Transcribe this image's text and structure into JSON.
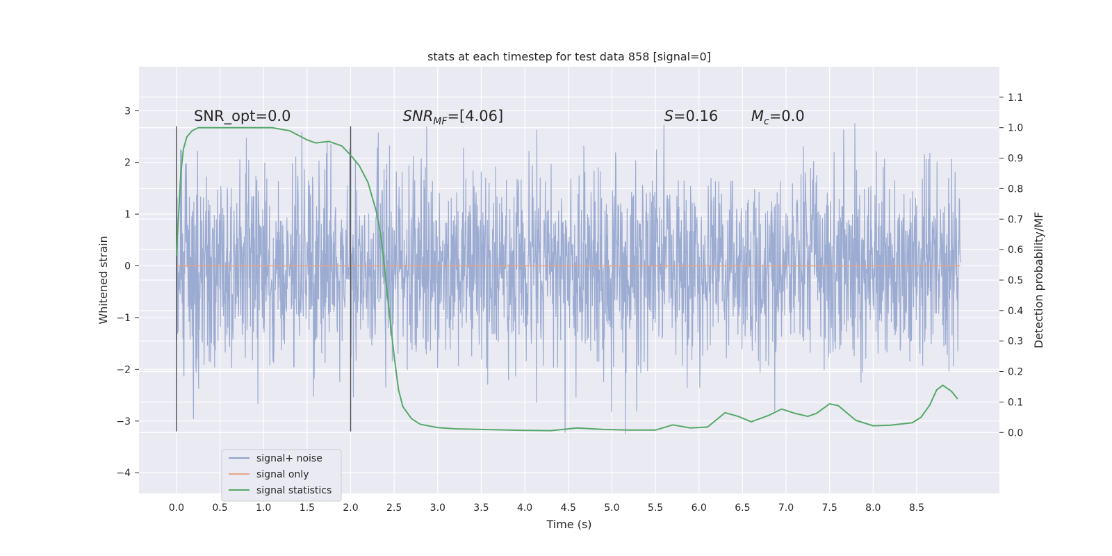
{
  "chart_data": {
    "type": "line",
    "title": "stats at each timestep for test data 858 [signal=0]",
    "xlabel": "Time (s)",
    "ylabel": "Whitened strain",
    "y2label": "Detection probability/MF",
    "xlim": [
      -0.43,
      9.45
    ],
    "ylim": [
      -4.4,
      3.85
    ],
    "y2lim": [
      -0.2,
      1.2
    ],
    "xticks": [
      0.0,
      0.5,
      1.0,
      1.5,
      2.0,
      2.5,
      3.0,
      3.5,
      4.0,
      4.5,
      5.0,
      5.5,
      6.0,
      6.5,
      7.0,
      7.5,
      8.0,
      8.5
    ],
    "xtick_labels": [
      "0.0",
      "0.5",
      "1.0",
      "1.5",
      "2.0",
      "2.5",
      "3.0",
      "3.5",
      "4.0",
      "4.5",
      "5.0",
      "5.5",
      "6.0",
      "6.5",
      "7.0",
      "7.5",
      "8.0",
      "8.5"
    ],
    "yticks": [
      -4,
      -3,
      -2,
      -1,
      0,
      1,
      2,
      3
    ],
    "ytick_labels": [
      "−4",
      "−3",
      "−2",
      "−1",
      "0",
      "1",
      "2",
      "3"
    ],
    "y2ticks": [
      0.0,
      0.1,
      0.2,
      0.3,
      0.4,
      0.5,
      0.6,
      0.7,
      0.8,
      0.9,
      1.0,
      1.1
    ],
    "y2tick_labels": [
      "0.0",
      "0.1",
      "0.2",
      "0.3",
      "0.4",
      "0.5",
      "0.6",
      "0.7",
      "0.8",
      "0.9",
      "1.0",
      "1.1"
    ],
    "grid": true,
    "legend_position": "lower-left",
    "series": [
      {
        "name": "signal+ noise",
        "color": "#8da0cb",
        "axis": "left",
        "style": "noise",
        "x_range": [
          0.0,
          9.0
        ],
        "sigma": 0.95
      },
      {
        "name": "signal only",
        "color": "#e8a587",
        "axis": "left",
        "x": [
          0.0,
          9.0
        ],
        "y": [
          0.0,
          0.0
        ]
      },
      {
        "name": "signal statistics",
        "color": "#55a868",
        "axis": "right",
        "x": [
          0.0,
          0.05,
          0.08,
          0.12,
          0.18,
          0.25,
          0.35,
          0.5,
          0.7,
          0.9,
          1.1,
          1.3,
          1.5,
          1.6,
          1.75,
          1.9,
          2.0,
          2.1,
          2.2,
          2.3,
          2.35,
          2.4,
          2.45,
          2.5,
          2.55,
          2.6,
          2.7,
          2.8,
          3.0,
          3.2,
          3.5,
          4.0,
          4.3,
          4.6,
          4.9,
          5.2,
          5.5,
          5.7,
          5.9,
          6.1,
          6.3,
          6.45,
          6.6,
          6.8,
          6.95,
          7.1,
          7.25,
          7.35,
          7.5,
          7.6,
          7.8,
          8.0,
          8.2,
          8.45,
          8.55,
          8.65,
          8.73,
          8.8,
          8.9,
          8.97
        ],
        "y": [
          0.58,
          0.85,
          0.93,
          0.97,
          0.99,
          1.0,
          1.0,
          1.0,
          1.0,
          1.0,
          1.0,
          0.99,
          0.96,
          0.95,
          0.955,
          0.94,
          0.91,
          0.875,
          0.82,
          0.72,
          0.64,
          0.51,
          0.38,
          0.25,
          0.14,
          0.085,
          0.045,
          0.027,
          0.016,
          0.012,
          0.01,
          0.007,
          0.006,
          0.015,
          0.01,
          0.008,
          0.008,
          0.025,
          0.015,
          0.018,
          0.065,
          0.053,
          0.035,
          0.056,
          0.077,
          0.063,
          0.053,
          0.063,
          0.094,
          0.088,
          0.04,
          0.022,
          0.024,
          0.032,
          0.05,
          0.09,
          0.14,
          0.155,
          0.135,
          0.11
        ]
      }
    ],
    "vlines": [
      {
        "x": 0.0,
        "y0": -3.2,
        "y1": 2.7,
        "color": "#555555"
      },
      {
        "x": 2.0,
        "y0": -3.2,
        "y1": 2.7,
        "color": "#555555"
      }
    ],
    "annotations": [
      {
        "x": 0.2,
        "y": 2.8,
        "parts": [
          {
            "t": "SNR_opt=0.0"
          }
        ]
      },
      {
        "x": 2.6,
        "y": 2.8,
        "parts": [
          {
            "t": "SNR",
            "i": true
          },
          {
            "t": "MF",
            "i": true,
            "sub": true
          },
          {
            "t": "=[4.06]"
          }
        ]
      },
      {
        "x": 5.6,
        "y": 2.8,
        "parts": [
          {
            "t": "S",
            "i": true
          },
          {
            "t": "=0.16"
          }
        ]
      },
      {
        "x": 6.6,
        "y": 2.8,
        "parts": [
          {
            "t": "M",
            "i": true
          },
          {
            "t": "c",
            "i": true,
            "sub": true
          },
          {
            "t": "=0.0"
          }
        ]
      }
    ]
  }
}
